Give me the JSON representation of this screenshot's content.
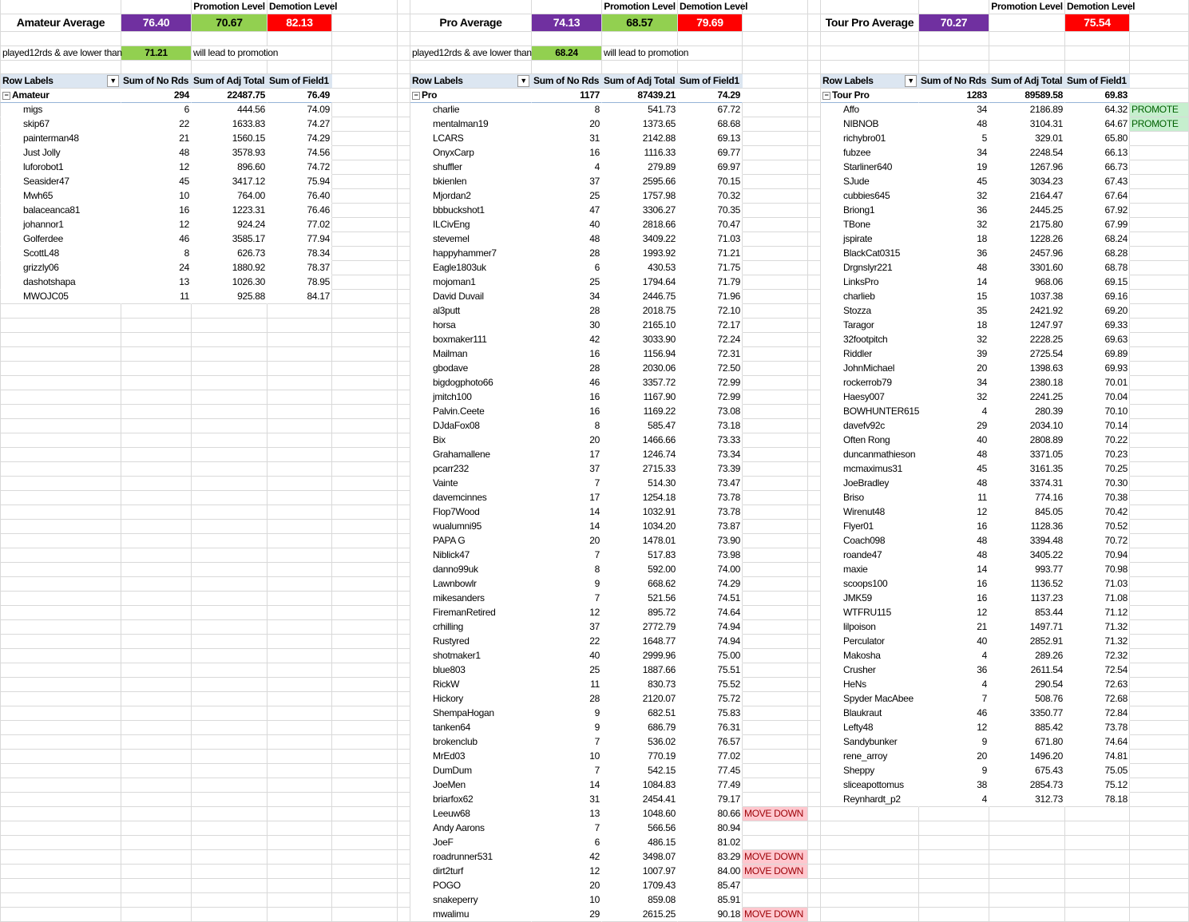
{
  "colors": {
    "average": "#7030A0",
    "promotion": "#92D050",
    "demotion": "#FF0000",
    "promote_bg": "#C6EFCE",
    "move_down_bg": "#FFC7CE",
    "pivot_header": "#DCE6F1"
  },
  "sections": [
    {
      "title": "Amateur Average",
      "average": "76.40",
      "promotion_label": "Promotion Level",
      "promotion_value": "70.67",
      "demotion_label": "Demotion Level",
      "demotion_value": "82.13",
      "threshold_label": "played12rds & ave lower than",
      "threshold_value": "71.21",
      "threshold_suffix": "will lead to promotion",
      "headers": [
        "Row Labels",
        "Sum of No Rds",
        "Sum of Adj Total",
        "Sum of Field1"
      ],
      "group": [
        "Amateur",
        "294",
        "22487.75",
        "76.49"
      ],
      "rows": [
        [
          "migs",
          "6",
          "444.56",
          "74.09",
          ""
        ],
        [
          "skip67",
          "22",
          "1633.83",
          "74.27",
          ""
        ],
        [
          "painterman48",
          "21",
          "1560.15",
          "74.29",
          ""
        ],
        [
          "Just Jolly",
          "48",
          "3578.93",
          "74.56",
          ""
        ],
        [
          "luforobot1",
          "12",
          "896.60",
          "74.72",
          ""
        ],
        [
          "Seasider47",
          "45",
          "3417.12",
          "75.94",
          ""
        ],
        [
          "Mwh65",
          "10",
          "764.00",
          "76.40",
          ""
        ],
        [
          "balaceanca81",
          "16",
          "1223.31",
          "76.46",
          ""
        ],
        [
          "johannor1",
          "12",
          "924.24",
          "77.02",
          ""
        ],
        [
          "Golferdee",
          "46",
          "3585.17",
          "77.94",
          ""
        ],
        [
          "ScottL48",
          "8",
          "626.73",
          "78.34",
          ""
        ],
        [
          "grizzly06",
          "24",
          "1880.92",
          "78.37",
          ""
        ],
        [
          "dashotshapa",
          "13",
          "1026.30",
          "78.95",
          ""
        ],
        [
          "MWOJC05",
          "11",
          "925.88",
          "84.17",
          ""
        ]
      ]
    },
    {
      "title": "Pro Average",
      "average": "74.13",
      "promotion_label": "Promotion Level",
      "promotion_value": "68.57",
      "demotion_label": "Demotion Level",
      "demotion_value": "79.69",
      "threshold_label": "played12rds & ave lower than",
      "threshold_value": "68.24",
      "threshold_suffix": "will lead to promotion",
      "headers": [
        "Row Labels",
        "Sum of No Rds",
        "Sum of Adj Total",
        "Sum of Field1"
      ],
      "group": [
        "Pro",
        "1177",
        "87439.21",
        "74.29"
      ],
      "rows": [
        [
          "charlie",
          "8",
          "541.73",
          "67.72",
          ""
        ],
        [
          "mentalman19",
          "20",
          "1373.65",
          "68.68",
          ""
        ],
        [
          "LCARS",
          "31",
          "2142.88",
          "69.13",
          ""
        ],
        [
          "OnyxCarp",
          "16",
          "1116.33",
          "69.77",
          ""
        ],
        [
          "shuffler",
          "4",
          "279.89",
          "69.97",
          ""
        ],
        [
          "bkienlen",
          "37",
          "2595.66",
          "70.15",
          ""
        ],
        [
          "Mjordan2",
          "25",
          "1757.98",
          "70.32",
          ""
        ],
        [
          "bbbuckshot1",
          "47",
          "3306.27",
          "70.35",
          ""
        ],
        [
          "ILCivEng",
          "40",
          "2818.66",
          "70.47",
          ""
        ],
        [
          "stevemel",
          "48",
          "3409.22",
          "71.03",
          ""
        ],
        [
          "happyhammer7",
          "28",
          "1993.92",
          "71.21",
          ""
        ],
        [
          "Eagle1803uk",
          "6",
          "430.53",
          "71.75",
          ""
        ],
        [
          "mojoman1",
          "25",
          "1794.64",
          "71.79",
          ""
        ],
        [
          "David Duvail",
          "34",
          "2446.75",
          "71.96",
          ""
        ],
        [
          "al3putt",
          "28",
          "2018.75",
          "72.10",
          ""
        ],
        [
          "horsa",
          "30",
          "2165.10",
          "72.17",
          ""
        ],
        [
          "boxmaker111",
          "42",
          "3033.90",
          "72.24",
          ""
        ],
        [
          "Mailman",
          "16",
          "1156.94",
          "72.31",
          ""
        ],
        [
          "gbodave",
          "28",
          "2030.06",
          "72.50",
          ""
        ],
        [
          "bigdogphoto66",
          "46",
          "3357.72",
          "72.99",
          ""
        ],
        [
          "jmitch100",
          "16",
          "1167.90",
          "72.99",
          ""
        ],
        [
          "Palvin.Ceete",
          "16",
          "1169.22",
          "73.08",
          ""
        ],
        [
          "DJdaFox08",
          "8",
          "585.47",
          "73.18",
          ""
        ],
        [
          "Bix",
          "20",
          "1466.66",
          "73.33",
          ""
        ],
        [
          "Grahamallene",
          "17",
          "1246.74",
          "73.34",
          ""
        ],
        [
          "pcarr232",
          "37",
          "2715.33",
          "73.39",
          ""
        ],
        [
          "Vainte",
          "7",
          "514.30",
          "73.47",
          ""
        ],
        [
          "davemcinnes",
          "17",
          "1254.18",
          "73.78",
          ""
        ],
        [
          "Flop7Wood",
          "14",
          "1032.91",
          "73.78",
          ""
        ],
        [
          "wualumni95",
          "14",
          "1034.20",
          "73.87",
          ""
        ],
        [
          "PAPA G",
          "20",
          "1478.01",
          "73.90",
          ""
        ],
        [
          "Niblick47",
          "7",
          "517.83",
          "73.98",
          ""
        ],
        [
          "danno99uk",
          "8",
          "592.00",
          "74.00",
          ""
        ],
        [
          "Lawnbowlr",
          "9",
          "668.62",
          "74.29",
          ""
        ],
        [
          "mikesanders",
          "7",
          "521.56",
          "74.51",
          ""
        ],
        [
          "FiremanRetired",
          "12",
          "895.72",
          "74.64",
          ""
        ],
        [
          "crhilling",
          "37",
          "2772.79",
          "74.94",
          ""
        ],
        [
          "Rustyred",
          "22",
          "1648.77",
          "74.94",
          ""
        ],
        [
          "shotmaker1",
          "40",
          "2999.96",
          "75.00",
          ""
        ],
        [
          "blue803",
          "25",
          "1887.66",
          "75.51",
          ""
        ],
        [
          "RickW",
          "11",
          "830.73",
          "75.52",
          ""
        ],
        [
          "Hickory",
          "28",
          "2120.07",
          "75.72",
          ""
        ],
        [
          "ShempaHogan",
          "9",
          "682.51",
          "75.83",
          ""
        ],
        [
          "tanken64",
          "9",
          "686.79",
          "76.31",
          ""
        ],
        [
          "brokenclub",
          "7",
          "536.02",
          "76.57",
          ""
        ],
        [
          "MrEd03",
          "10",
          "770.19",
          "77.02",
          ""
        ],
        [
          "DumDum",
          "7",
          "542.15",
          "77.45",
          ""
        ],
        [
          "JoeMen",
          "14",
          "1084.83",
          "77.49",
          ""
        ],
        [
          "briarfox62",
          "31",
          "2454.41",
          "79.17",
          ""
        ],
        [
          "Leeuw68",
          "13",
          "1048.60",
          "80.66",
          "MOVE DOWN"
        ],
        [
          "Andy Aarons",
          "7",
          "566.56",
          "80.94",
          ""
        ],
        [
          "JoeF",
          "6",
          "486.15",
          "81.02",
          ""
        ],
        [
          "roadrunner531",
          "42",
          "3498.07",
          "83.29",
          "MOVE DOWN"
        ],
        [
          "dirt2turf",
          "12",
          "1007.97",
          "84.00",
          "MOVE DOWN"
        ],
        [
          "POGO",
          "20",
          "1709.43",
          "85.47",
          ""
        ],
        [
          "snakeperry",
          "10",
          "859.08",
          "85.91",
          ""
        ],
        [
          "mwalimu",
          "29",
          "2615.25",
          "90.18",
          "MOVE DOWN"
        ]
      ]
    },
    {
      "title": "Tour Pro Average",
      "average": "70.27",
      "promotion_label": "Promotion Level",
      "promotion_value": "",
      "demotion_label": "Demotion Level",
      "demotion_value": "75.54",
      "threshold_label": "",
      "threshold_value": "",
      "threshold_suffix": "",
      "headers": [
        "Row Labels",
        "Sum of No Rds",
        "Sum of Adj Total",
        "Sum of Field1"
      ],
      "group": [
        "Tour Pro",
        "1283",
        "89589.58",
        "69.83"
      ],
      "rows": [
        [
          "Affo",
          "34",
          "2186.89",
          "64.32",
          "PROMOTE"
        ],
        [
          "NIBNOB",
          "48",
          "3104.31",
          "64.67",
          "PROMOTE"
        ],
        [
          "richybro01",
          "5",
          "329.01",
          "65.80",
          ""
        ],
        [
          "fubzee",
          "34",
          "2248.54",
          "66.13",
          ""
        ],
        [
          "Starliner640",
          "19",
          "1267.96",
          "66.73",
          ""
        ],
        [
          "SJude",
          "45",
          "3034.23",
          "67.43",
          ""
        ],
        [
          "cubbies645",
          "32",
          "2164.47",
          "67.64",
          ""
        ],
        [
          "Briong1",
          "36",
          "2445.25",
          "67.92",
          ""
        ],
        [
          "TBone",
          "32",
          "2175.80",
          "67.99",
          ""
        ],
        [
          "jspirate",
          "18",
          "1228.26",
          "68.24",
          ""
        ],
        [
          "BlackCat0315",
          "36",
          "2457.96",
          "68.28",
          ""
        ],
        [
          "Drgnslyr221",
          "48",
          "3301.60",
          "68.78",
          ""
        ],
        [
          "LinksPro",
          "14",
          "968.06",
          "69.15",
          ""
        ],
        [
          "charlieb",
          "15",
          "1037.38",
          "69.16",
          ""
        ],
        [
          "Stozza",
          "35",
          "2421.92",
          "69.20",
          ""
        ],
        [
          "Taragor",
          "18",
          "1247.97",
          "69.33",
          ""
        ],
        [
          "32footpitch",
          "32",
          "2228.25",
          "69.63",
          ""
        ],
        [
          "Riddler",
          "39",
          "2725.54",
          "69.89",
          ""
        ],
        [
          "JohnMichael",
          "20",
          "1398.63",
          "69.93",
          ""
        ],
        [
          "rockerrob79",
          "34",
          "2380.18",
          "70.01",
          ""
        ],
        [
          "Haesy007",
          "32",
          "2241.25",
          "70.04",
          ""
        ],
        [
          "BOWHUNTER615",
          "4",
          "280.39",
          "70.10",
          ""
        ],
        [
          "davefv92c",
          "29",
          "2034.10",
          "70.14",
          ""
        ],
        [
          "Often Rong",
          "40",
          "2808.89",
          "70.22",
          ""
        ],
        [
          "duncanmathieson",
          "48",
          "3371.05",
          "70.23",
          ""
        ],
        [
          "mcmaximus31",
          "45",
          "3161.35",
          "70.25",
          ""
        ],
        [
          "JoeBradley",
          "48",
          "3374.31",
          "70.30",
          ""
        ],
        [
          "Briso",
          "11",
          "774.16",
          "70.38",
          ""
        ],
        [
          "Wirenut48",
          "12",
          "845.05",
          "70.42",
          ""
        ],
        [
          "Flyer01",
          "16",
          "1128.36",
          "70.52",
          ""
        ],
        [
          "Coach098",
          "48",
          "3394.48",
          "70.72",
          ""
        ],
        [
          "roande47",
          "48",
          "3405.22",
          "70.94",
          ""
        ],
        [
          "maxie",
          "14",
          "993.77",
          "70.98",
          ""
        ],
        [
          "scoops100",
          "16",
          "1136.52",
          "71.03",
          ""
        ],
        [
          "JMK59",
          "16",
          "1137.23",
          "71.08",
          ""
        ],
        [
          "WTFRU115",
          "12",
          "853.44",
          "71.12",
          ""
        ],
        [
          "lilpoison",
          "21",
          "1497.71",
          "71.32",
          ""
        ],
        [
          "Perculator",
          "40",
          "2852.91",
          "71.32",
          ""
        ],
        [
          "Makosha",
          "4",
          "289.26",
          "72.32",
          ""
        ],
        [
          "Crusher",
          "36",
          "2611.54",
          "72.54",
          ""
        ],
        [
          "HeNs",
          "4",
          "290.54",
          "72.63",
          ""
        ],
        [
          "Spyder MacAbee",
          "7",
          "508.76",
          "72.68",
          ""
        ],
        [
          "Blaukraut",
          "46",
          "3350.77",
          "72.84",
          ""
        ],
        [
          "Lefty48",
          "12",
          "885.42",
          "73.78",
          ""
        ],
        [
          "Sandybunker",
          "9",
          "671.80",
          "74.64",
          ""
        ],
        [
          "rene_arroy",
          "20",
          "1496.20",
          "74.81",
          ""
        ],
        [
          "Sheppy",
          "9",
          "675.43",
          "75.05",
          ""
        ],
        [
          "sliceapottomus",
          "38",
          "2854.73",
          "75.12",
          ""
        ],
        [
          "Reynhardt_p2",
          "4",
          "312.73",
          "78.18",
          ""
        ]
      ]
    }
  ]
}
